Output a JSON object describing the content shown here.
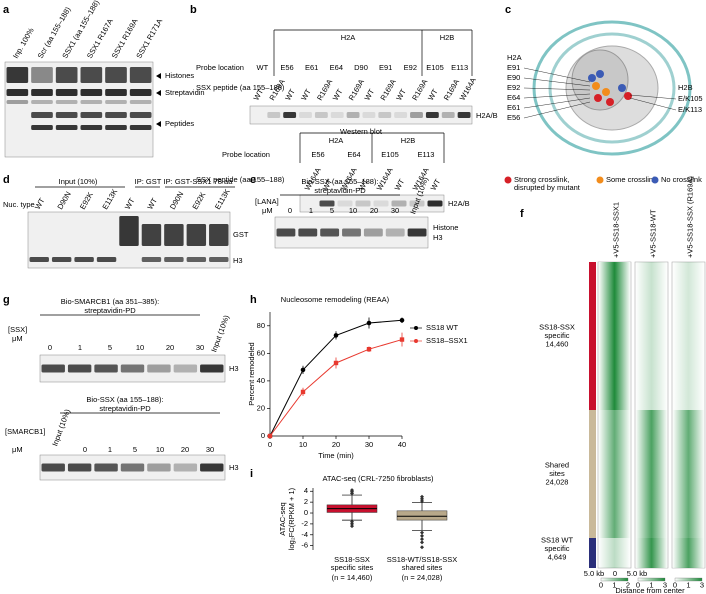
{
  "letters": [
    "a",
    "b",
    "c",
    "d",
    "e",
    "f",
    "g",
    "h",
    "i"
  ],
  "a": {
    "lanes": [
      "Inp. 100%",
      "Scr (aa 155–188)",
      "SSX1 (aa 155–188)",
      "SSX1 R167A",
      "SSX1 R169A",
      "SSX1 R171A"
    ],
    "markers": [
      "Histones",
      "Streptavidin",
      "Peptides"
    ]
  },
  "b": {
    "blot1": {
      "groups": [
        "H2A",
        "H2B"
      ],
      "probe_label": "Probe location",
      "probes": [
        {
          "text": "WT"
        },
        {
          "text": "E56",
          "color": "#d62027"
        },
        {
          "text": "E61"
        },
        {
          "text": "E64"
        },
        {
          "text": "D90"
        },
        {
          "text": "E91"
        },
        {
          "text": "E92"
        },
        {
          "text": "E105"
        },
        {
          "text": "E113",
          "color": "#d62027"
        }
      ],
      "peptide_label": "SSX peptide (aa 155–188)",
      "lanes": [
        {
          "text": "WT"
        },
        {
          "text": "R169A",
          "color": "#d62027"
        },
        {
          "text": "WT",
          "color": "#d62027"
        },
        {
          "text": "WT"
        },
        {
          "text": "R169A"
        },
        {
          "text": "WT"
        },
        {
          "text": "R169A"
        },
        {
          "text": "WT"
        },
        {
          "text": "R169A"
        },
        {
          "text": "WT"
        },
        {
          "text": "R169A"
        },
        {
          "text": "WT",
          "color": "#d62027"
        },
        {
          "text": "R169A",
          "color": "#d62027"
        },
        {
          "text": "W164A",
          "color": "#d62027"
        }
      ],
      "band": "H2A/B",
      "caption": "Western blot"
    },
    "blot2": {
      "groups": [
        "H2A",
        "H2B"
      ],
      "probe_label": "Probe location",
      "probes": [
        {
          "text": "E56",
          "color": "#d62027"
        },
        {
          "text": "E64"
        },
        {
          "text": "E105"
        },
        {
          "text": "E113",
          "color": "#d62027"
        }
      ],
      "peptide_label": "SSX peptide (aa 155–188)",
      "lanes": [
        {
          "text": "W164A",
          "color": "#d62027"
        },
        {
          "text": "WT",
          "color": "#d62027"
        },
        {
          "text": "W164A"
        },
        {
          "text": "WT"
        },
        {
          "text": "W164A"
        },
        {
          "text": "WT"
        },
        {
          "text": "W164A",
          "color": "#d62027"
        },
        {
          "text": "WT",
          "color": "#d62027"
        }
      ],
      "band": "H2A/B"
    }
  },
  "c": {
    "left_labels": [
      "H2A",
      "E91",
      "E90",
      "E92",
      "E64",
      "E61",
      "E56"
    ],
    "right_labels": [
      "H2B",
      "E/K105",
      "E/K113"
    ],
    "legend": [
      {
        "name": [
          "Strong crosslink,",
          "disrupted by mutant"
        ],
        "color": "#d62027"
      },
      {
        "name": [
          "Some crosslink"
        ],
        "color": "#f28c1c"
      },
      {
        "name": [
          "No crosslink"
        ],
        "color": "#3b5bb5"
      }
    ]
  },
  "d": {
    "headers": [
      "Input (10%)",
      "IP: GST",
      "IP: GST-SSX1 78 aa"
    ],
    "row_label": "Nuc. type",
    "lanes": [
      "WT",
      "D90N",
      "E92K",
      "E113K",
      "WT",
      "WT",
      "D90N",
      "E92K",
      "E113K"
    ],
    "bands": [
      "GST",
      "H3"
    ]
  },
  "e": {
    "title": [
      "Bio-SSX (aa 155–188):",
      "streptavidin-PD"
    ],
    "conc_label": "[LANA]",
    "unit": "μM",
    "concentrations": [
      0,
      1,
      5,
      10,
      20,
      30
    ],
    "input": "Input (10%)",
    "band": [
      "Histone",
      "H3"
    ]
  },
  "f": {
    "columns": [
      "+V5-SS18-SSX1",
      "+V5-SS18-WT",
      "+V5-SS18-SSX (R169A)"
    ],
    "groups": [
      {
        "lines": [
          "SS18-SSX",
          "specific",
          "14,460"
        ],
        "color": "#c8102e"
      },
      {
        "lines": [
          "Shared",
          "sites",
          "24,028"
        ],
        "color": "#c9b99a"
      },
      {
        "lines": [
          "SS18 WT",
          "specific",
          "4,649"
        ],
        "color": "#2b2f7a"
      }
    ],
    "axis": [
      "5.0 kb",
      "0",
      "5.0 kb"
    ],
    "scales": [
      [
        0,
        1,
        2
      ],
      [
        0,
        1,
        3
      ],
      [
        0,
        1,
        3
      ]
    ],
    "xlabel": "Distance from center"
  },
  "g": {
    "top": {
      "title": [
        "Bio-SMARCB1 (aa 351–385):",
        "streptavidin-PD"
      ],
      "conc_label": "[SSX]",
      "unit": "μM",
      "concentrations": [
        0,
        1,
        5,
        10,
        20,
        30
      ],
      "input": "Input (10%)",
      "band": "H3"
    },
    "bottom": {
      "title": [
        "Bio-SSX (aa 155–188):",
        "streptavidin-PD"
      ],
      "conc_label": "[SMARCB1]",
      "unit": "μM",
      "concentrations": [
        0,
        1,
        5,
        10,
        20,
        30
      ],
      "input": "Input (10%)",
      "band": "H3"
    }
  },
  "chart_data": [
    {
      "type": "line",
      "title": "Nucleosome remodeling (REAA)",
      "x_label": "Time (min)",
      "y_label": "Percent remodeled",
      "x": [
        0,
        10,
        20,
        30,
        40
      ],
      "series": [
        {
          "name": "SS18 WT",
          "color": "#000000",
          "values": [
            0,
            48,
            73,
            82,
            84
          ],
          "errors": [
            0,
            3,
            3,
            4,
            2
          ]
        },
        {
          "name": "SS18–SSX1",
          "color": "#e8392f",
          "values": [
            0,
            32,
            53,
            63,
            70
          ],
          "errors": [
            0,
            3,
            4,
            2,
            5
          ]
        }
      ],
      "xlim": [
        0,
        40
      ],
      "ylim": [
        0,
        90
      ],
      "xticks": [
        0,
        10,
        20,
        30,
        40
      ],
      "yticks": [
        0,
        20,
        40,
        60,
        80
      ],
      "legend": "right"
    },
    {
      "type": "box",
      "title": "ATAC-seq (CRL-7250 fibroblasts)",
      "y_label": [
        "ATAC-seq",
        "log₂FC(RPKM + 1)"
      ],
      "categories": [
        [
          "SS18-SSX",
          "specific sites"
        ],
        [
          "SS18-WT/SS18-SSX",
          "shared sites"
        ]
      ],
      "n_labels": [
        "(n = 14,460)",
        "(n = 24,028)"
      ],
      "colors": [
        "#c8102e",
        "#b8a88a"
      ],
      "boxes": [
        {
          "whislo": -1.3,
          "q1": 0.1,
          "med": 0.8,
          "q3": 1.5,
          "whishi": 3.3
        },
        {
          "whislo": -3.2,
          "q1": -1.3,
          "med": -0.6,
          "q3": 0.4,
          "whishi": 1.9
        }
      ],
      "outliers": [
        [
          3.6,
          3.9,
          4.2,
          -1.6,
          -2.0,
          -2.4
        ],
        [
          2.2,
          2.6,
          3.0,
          -3.6,
          -4.2,
          -4.8,
          -5.4,
          -6.3
        ]
      ],
      "ylim": [
        -6.8,
        4.6
      ],
      "yticks": [
        -6,
        -4,
        -2,
        0,
        2,
        4
      ]
    }
  ]
}
